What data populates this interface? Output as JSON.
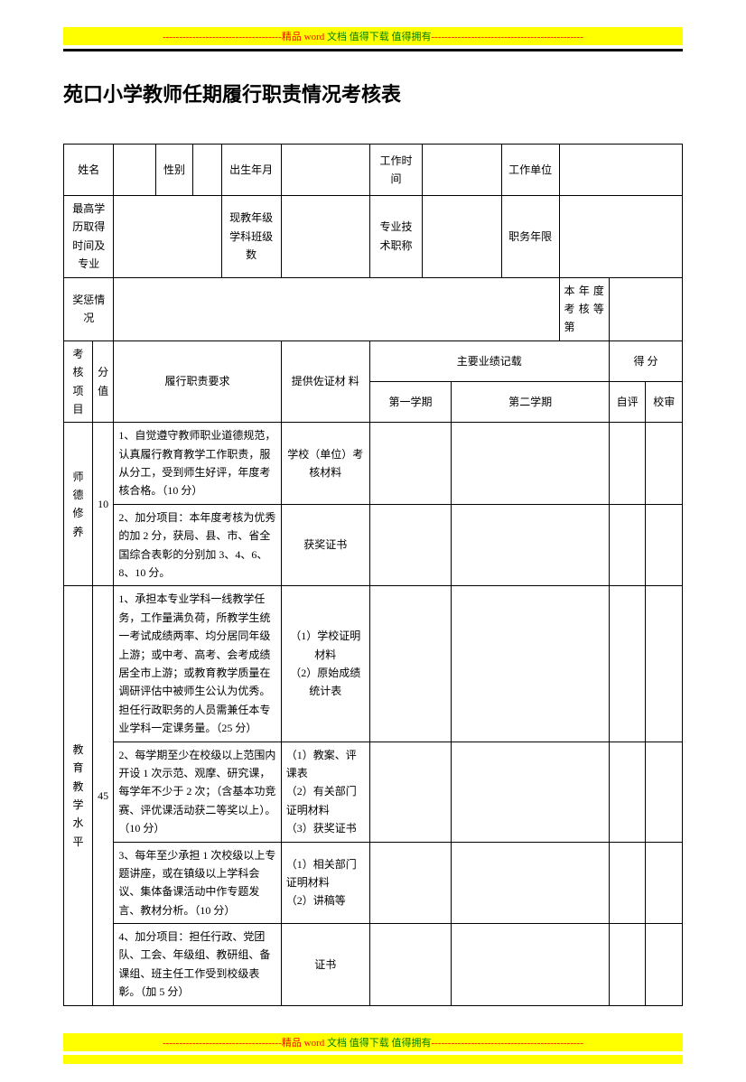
{
  "banner": {
    "dashes_left": "------------------------------------",
    "prefix": "精品",
    "word": "word",
    "suffix": " 文档  值得下载  值得拥有",
    "dashes_right": "----------------------------------------------"
  },
  "title": "苑口小学教师任期履行职责情况考核表",
  "labels": {
    "name": "姓名",
    "gender": "性别",
    "birth": "出生年月",
    "work_time": "工作时间",
    "work_unit": "工作单位",
    "highest_edu": "最高学历取得时间及专业",
    "teach_grade": "现教年级学科班级数",
    "pro_title": "专业技术职称",
    "duty_years": "职务年限",
    "rewards": "奖惩情况",
    "year_grade": "本年度考核等第",
    "assess_item": "考核项目",
    "score_val": "分值",
    "duty_req": "履行职责要求",
    "evidence": "提供佐证材    料",
    "main_record": "主要业绩记载",
    "score": "得    分",
    "sem1": "第一学期",
    "sem2": "第二学期",
    "self_eval": "自评",
    "school_audit": "校审"
  },
  "sections": [
    {
      "name": "师德修养",
      "score": "10",
      "rows": [
        {
          "req": "1、自觉遵守教师职业道德规范，认真履行教育教学工作职责，服从分工，受到师生好评，年度考核合格。（10 分）",
          "evidence": "学校（单位）考核材料"
        },
        {
          "req": "2、加分项目：本年度考核为优秀的加 2 分，获局、县、市、省全国综合表彰的分别加 3、4、6、8、10 分。",
          "evidence": "获奖证书"
        }
      ]
    },
    {
      "name": "教育教学水平",
      "score": "45",
      "rows": [
        {
          "req": "1、承担本专业学科一线教学任务，工作量满负荷，所教学生统一考试成绩两率、均分居同年级上游；或中考、高考、会考成绩居全市上游；或教育教学质量在调研评估中被师生公认为优秀。担任行政职务的人员需兼任本专业学科一定课务量。（25 分）",
          "evidence": "（1）学校证明材料\n（2）原始成绩统计表"
        },
        {
          "req": "2、每学期至少在校级以上范围内开设 1 次示范、观摩、研究课，每学年不少于 2 次；（含基本功竞赛、评优课活动获二等奖以上）。（10 分）",
          "evidence": "（1）教案、评课表\n（2）有关部门证明材料\n（3）获奖证书"
        },
        {
          "req": "3、每年至少承担 1 次校级以上专题讲座，或在镇级以上学科会议、集体备课活动中作专题发言、教材分析。（10 分）",
          "evidence": "（1）相关部门证明材料\n（2）讲稿等"
        },
        {
          "req": "4、加分项目：担任行政、党团队、工会、年级组、教研组、备课组、班主任工作受到校级表彰。（加 5 分）",
          "evidence": "证书"
        }
      ]
    }
  ]
}
